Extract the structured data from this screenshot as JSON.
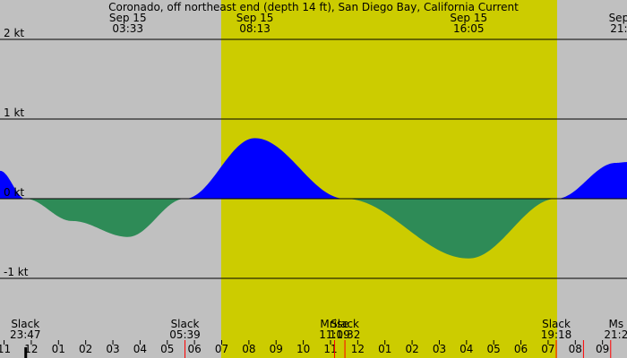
{
  "chart_data": {
    "type": "area",
    "title": "Coronado, off northeast end (depth 14 ft), San Diego Bay, California Current",
    "y_unit": "kt",
    "ylim": [
      -1.3,
      2.2
    ],
    "y_ticks": [
      {
        "value": 2,
        "label": "2 kt"
      },
      {
        "value": 1,
        "label": "1 kt"
      },
      {
        "value": 0,
        "label": "0 kt"
      },
      {
        "value": -1,
        "label": "-1 kt"
      }
    ],
    "x_unit": "hours from midnight Sep 15",
    "xlim": [
      -1.15,
      21.9
    ],
    "day_band": {
      "start": 6.98,
      "end": 19.33,
      "color": "#cccc00"
    },
    "night_color": "#c0c0c0",
    "flood_color": "#0000ff",
    "ebb_color": "#2e8b57",
    "x_ticks": [
      {
        "x": -1,
        "label": "11"
      },
      {
        "x": 0,
        "label": "12"
      },
      {
        "x": 1,
        "label": "01"
      },
      {
        "x": 2,
        "label": "02"
      },
      {
        "x": 3,
        "label": "03"
      },
      {
        "x": 4,
        "label": "04"
      },
      {
        "x": 5,
        "label": "05"
      },
      {
        "x": 6,
        "label": "06"
      },
      {
        "x": 7,
        "label": "07"
      },
      {
        "x": 8,
        "label": "08"
      },
      {
        "x": 9,
        "label": "09"
      },
      {
        "x": 10,
        "label": "10"
      },
      {
        "x": 11,
        "label": "11"
      },
      {
        "x": 12,
        "label": "12"
      },
      {
        "x": 13,
        "label": "01"
      },
      {
        "x": 14,
        "label": "02"
      },
      {
        "x": 15,
        "label": "03"
      },
      {
        "x": 16,
        "label": "04"
      },
      {
        "x": 17,
        "label": "05"
      },
      {
        "x": 18,
        "label": "06"
      },
      {
        "x": 19,
        "label": "07"
      },
      {
        "x": 20,
        "label": "08"
      },
      {
        "x": 21,
        "label": "09"
      }
    ],
    "red_ticks": [
      5.65,
      11.15,
      11.53,
      19.3,
      20.3,
      21.3
    ],
    "midnight_tick": -0.22,
    "series": [
      {
        "points": [
          [
            -1.15,
            0.35
          ],
          [
            -0.22,
            0.0
          ],
          [
            1.5,
            -0.28
          ],
          [
            3.55,
            -0.48
          ],
          [
            5.65,
            0.0
          ],
          [
            8.22,
            0.76
          ],
          [
            11.53,
            0.0
          ],
          [
            16.08,
            -0.75
          ],
          [
            19.3,
            0.0
          ],
          [
            21.5,
            0.45
          ],
          [
            21.9,
            0.46
          ]
        ]
      }
    ],
    "top_events": [
      {
        "x": 3.55,
        "date": "Sep 15",
        "time": "03:33"
      },
      {
        "x": 8.22,
        "date": "Sep 15",
        "time": "08:13"
      },
      {
        "x": 16.08,
        "date": "Sep 15",
        "time": "16:05"
      },
      {
        "x": 21.6,
        "date": "Sep",
        "time": "21:"
      }
    ],
    "bottom_events": [
      {
        "x": -0.22,
        "label": "Slack",
        "time": "23:47"
      },
      {
        "x": 5.65,
        "label": "Slack",
        "time": "05:39"
      },
      {
        "x": 11.15,
        "label": "Mrise",
        "time": "11:09"
      },
      {
        "x": 11.53,
        "label": "Slack",
        "time": "11:32"
      },
      {
        "x": 19.3,
        "label": "Slack",
        "time": "19:18"
      },
      {
        "x": 21.5,
        "label": "Ms",
        "time": "21:2"
      }
    ]
  }
}
